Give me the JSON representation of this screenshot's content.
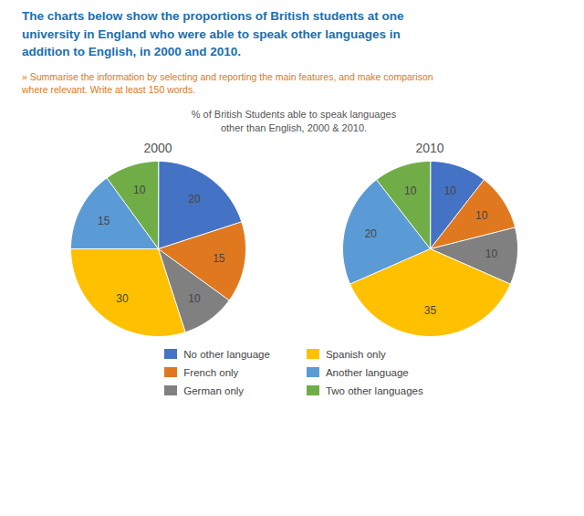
{
  "title": "The charts below show the proportions of British students at one\nuniversity in England who were able to speak other languages in\naddition to English, in 2000 and 2010.",
  "subtitle": "» Summarise the information by selecting and reporting the main features, and make comparison\nwhere relevant. Write at least 150 words.",
  "annotations": [
    "% of British Students able to speak languages\nother than English, 2000 & 2010."
  ],
  "chart_data": [
    {
      "type": "pie",
      "title": "2000",
      "categories": [
        "No other language",
        "French only",
        "German only",
        "Spanish only",
        "Another language",
        "Two other languages"
      ],
      "values": [
        20,
        15,
        10,
        30,
        15,
        10
      ],
      "colors": [
        "#4472c4",
        "#e07820",
        "#808080",
        "#ffc000",
        "#5b9bd5",
        "#70ad47"
      ],
      "data_labels": true,
      "legend": "bottom"
    },
    {
      "type": "pie",
      "title": "2010",
      "categories": [
        "No other language",
        "French only",
        "German only",
        "Spanish only",
        "Another language",
        "Two other languages"
      ],
      "values": [
        10,
        10,
        10,
        35,
        20,
        10
      ],
      "colors": [
        "#4472c4",
        "#e07820",
        "#808080",
        "#ffc000",
        "#5b9bd5",
        "#70ad47"
      ],
      "data_labels": true,
      "legend": "bottom"
    }
  ]
}
